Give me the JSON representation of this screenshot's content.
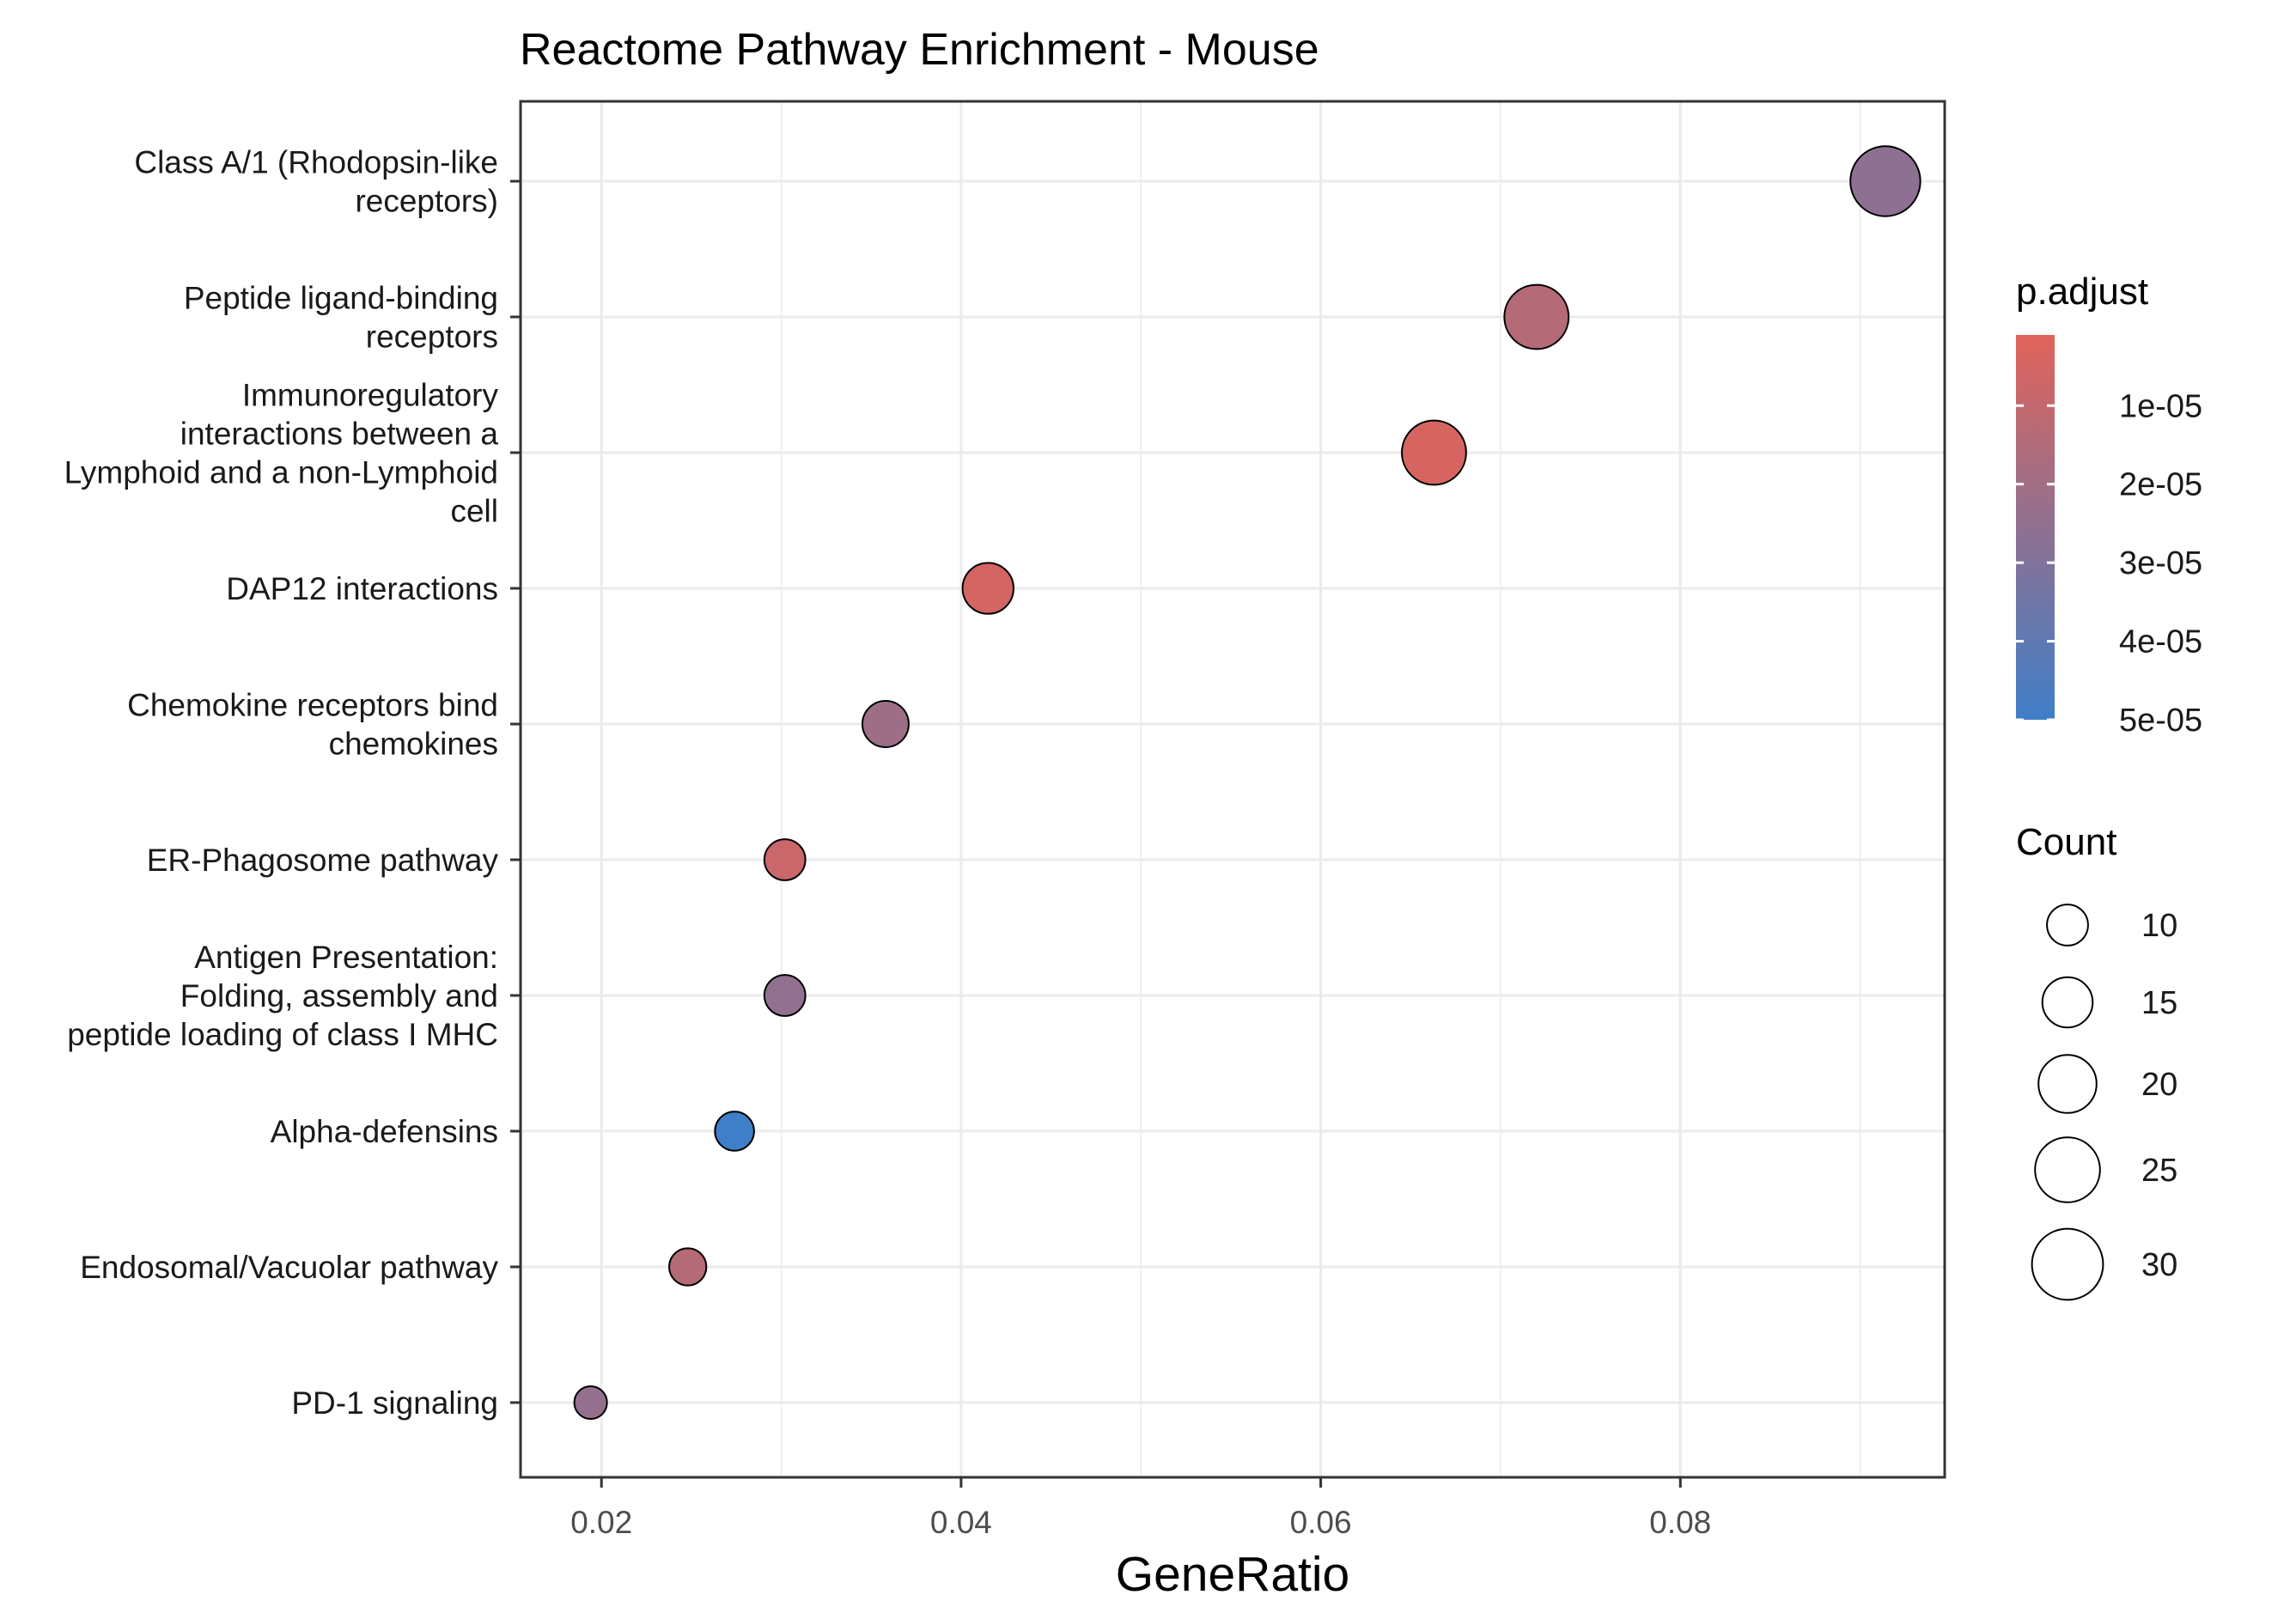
{
  "chart_data": {
    "type": "scatter",
    "title": "Reactome Pathway Enrichment - Mouse",
    "xlabel": "GeneRatio",
    "ylabel": "",
    "xlim": [
      0.0155,
      0.0947
    ],
    "x_ticks": [
      "0.02",
      "0.04",
      "0.06",
      "0.08"
    ],
    "x_tick_values": [
      0.02,
      0.04,
      0.06,
      0.08
    ],
    "grid": true,
    "legend_position": "right",
    "categories": [
      "Class A/1 (Rhodopsin-like receptors)",
      "Peptide ligand-binding receptors",
      "Immunoregulatory interactions between a Lymphoid and a non-Lymphoid cell",
      "DAP12 interactions",
      "Chemokine receptors bind chemokines",
      "ER-Phagosome pathway",
      "Antigen Presentation: Folding, assembly and peptide loading of class I MHC",
      "Alpha-defensins",
      "Endosomal/Vacuolar pathway",
      "PD-1 signaling"
    ],
    "category_label_lines": [
      [
        "Class A/1 (Rhodopsin-like",
        "receptors)"
      ],
      [
        "Peptide ligand-binding",
        "receptors"
      ],
      [
        "Immunoregulatory",
        "interactions between a",
        "Lymphoid and a non-Lymphoid",
        "cell"
      ],
      [
        "DAP12 interactions"
      ],
      [
        "Chemokine receptors bind",
        "chemokines"
      ],
      [
        "ER-Phagosome pathway"
      ],
      [
        "Antigen Presentation:",
        "Folding, assembly and",
        "peptide loading of class I MHC"
      ],
      [
        "Alpha-defensins"
      ],
      [
        "Endosomal/Vacuolar pathway"
      ],
      [
        "PD-1 signaling"
      ]
    ],
    "points": [
      {
        "gene_ratio": 0.0914,
        "count": 32,
        "p_adjust": 2.6e-05
      },
      {
        "gene_ratio": 0.072,
        "count": 27,
        "p_adjust": 1.4e-05
      },
      {
        "gene_ratio": 0.0663,
        "count": 27,
        "p_adjust": 4e-06
      },
      {
        "gene_ratio": 0.0415,
        "count": 17,
        "p_adjust": 5e-06
      },
      {
        "gene_ratio": 0.0358,
        "count": 14,
        "p_adjust": 2.1e-05
      },
      {
        "gene_ratio": 0.0302,
        "count": 11,
        "p_adjust": 8e-06
      },
      {
        "gene_ratio": 0.0302,
        "count": 11,
        "p_adjust": 2.5e-05
      },
      {
        "gene_ratio": 0.0274,
        "count": 10,
        "p_adjust": 5e-05
      },
      {
        "gene_ratio": 0.0248,
        "count": 9,
        "p_adjust": 1.4e-05
      },
      {
        "gene_ratio": 0.0194,
        "count": 7,
        "p_adjust": 2.4e-05
      }
    ],
    "color_legend": {
      "title": "p.adjust",
      "labels": [
        "1e-05",
        "2e-05",
        "3e-05",
        "4e-05",
        "5e-05"
      ],
      "values": [
        1e-05,
        2e-05,
        3e-05,
        4e-05,
        5e-05
      ],
      "range": [
        1e-06,
        5e-05
      ],
      "low_color": "#e0635a",
      "high_color": "#3f7ec8"
    },
    "size_legend": {
      "title": "Count",
      "values": [
        10,
        15,
        20,
        25,
        30
      ],
      "labels": [
        "10",
        "15",
        "20",
        "25",
        "30"
      ]
    },
    "colors": {
      "panel_border": "#333333",
      "grid": "#ebebeb",
      "point_outline": "#000000"
    }
  }
}
